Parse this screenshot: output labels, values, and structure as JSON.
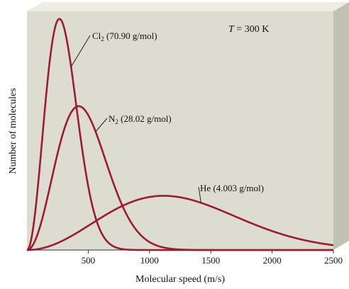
{
  "chart_data": {
    "type": "line",
    "title": "",
    "annotation": {
      "prefix": "T",
      "text": " = 300 K"
    },
    "xlabel": "Molecular speed (m/s)",
    "ylabel": "Number of molecules",
    "xlim": [
      0,
      2500
    ],
    "ylim": [
      0,
      1.0
    ],
    "xticks": [
      500,
      1000,
      1500,
      2000,
      2500
    ],
    "xtick_labels": [
      "500",
      "1000",
      "1500",
      "2000",
      "2500"
    ],
    "grid": false,
    "legend": "none",
    "series": [
      {
        "name": "Cl2 (70.90 g/mol)",
        "label_main": "Cl",
        "label_sub": "2",
        "label_rest": " (70.90 g/mol)",
        "peak_speed": 265,
        "peak_value": 0.98
      },
      {
        "name": "N2 (28.02 g/mol)",
        "label_main": "N",
        "label_sub": "2",
        "label_rest": " (28.02 g/mol)",
        "peak_speed": 422,
        "peak_value": 0.61
      },
      {
        "name": "He (4.003 g/mol)",
        "label_main": "He (4.003 g/mol)",
        "label_sub": "",
        "label_rest": "",
        "peak_speed": 1115,
        "peak_value": 0.23
      }
    ]
  },
  "colors": {
    "curve": "#9e1b32",
    "panel_fill": "#dcdcd0",
    "panel_side": "#c2c2b4",
    "panel_top": "#ededE4",
    "axis": "#333333",
    "text": "#111111"
  }
}
